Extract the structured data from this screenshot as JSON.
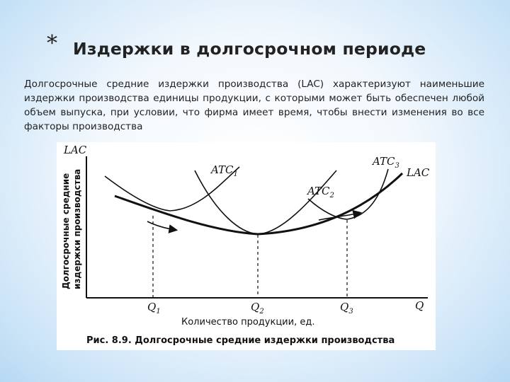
{
  "slide": {
    "asterisk": "*",
    "title": "Издержки в долгосрочном периоде",
    "paragraph": "Долгосрочные средние издержки производства (LAC) характеризуют наименьшие издержки производства единицы продукции, с которыми может быть обеспечен любой объем выпуска, при условии, что фирма имеет время, чтобы внести изменения во все факторы производства"
  },
  "figure": {
    "y_axis_symbol": "LAC",
    "y_axis_label_line1": "Долгосрочные средние",
    "y_axis_label_line2": "издержки производства",
    "x_axis_symbol": "Q",
    "x_axis_label": "Количество продукции, ед.",
    "curves": {
      "atc1": "ATC",
      "atc1_sub": "1",
      "atc2": "ATC",
      "atc2_sub": "2",
      "atc3": "ATC",
      "atc3_sub": "3",
      "lac": "LAC"
    },
    "ticks": [
      {
        "main": "Q",
        "sub": "1"
      },
      {
        "main": "Q",
        "sub": "2"
      },
      {
        "main": "Q",
        "sub": "3"
      }
    ],
    "caption": "Рис. 8.9. Долгосрочные средние издержки производства"
  }
}
